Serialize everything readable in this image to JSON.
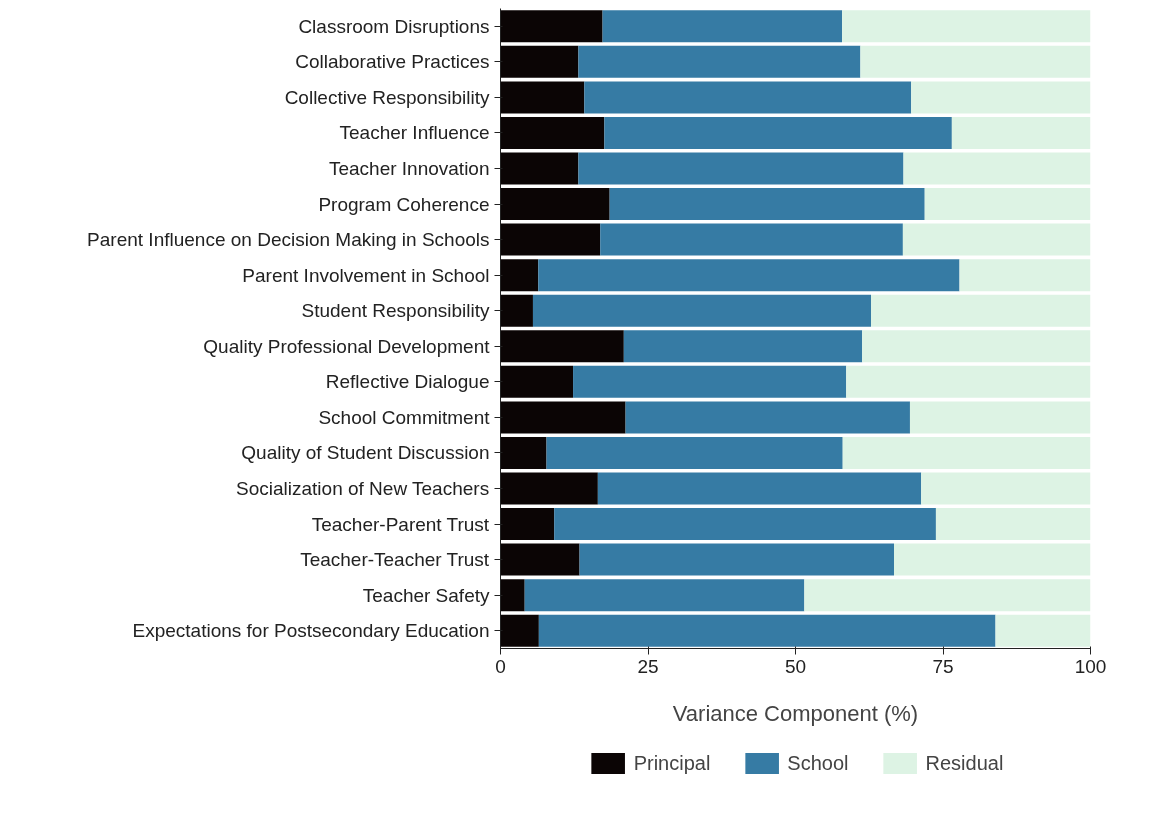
{
  "chart_data": {
    "type": "bar",
    "orientation": "horizontal",
    "stacked": true,
    "xlabel": "Variance Component (%)",
    "categories": [
      "Classroom Disruptions",
      "Collaborative Practices",
      "Collective Responsibility",
      "Teacher Influence",
      "Teacher Innovation",
      "Program Coherence",
      "Parent Influence on Decision Making in Schools",
      "Parent Involvement in School",
      "Student Responsibility",
      "Quality Professional Development",
      "Reflective Dialogue",
      "School Commitment",
      "Quality of Student Discussion",
      "Socialization of New Teachers",
      "Teacher-Parent Trust",
      "Teacher-Teacher Trust",
      "Teacher Safety",
      "Expectations for Postsecondary Education"
    ],
    "series": [
      {
        "name": "Principal",
        "color": "#0b0505",
        "values": [
          17.3,
          13.2,
          14.2,
          17.6,
          13.2,
          18.5,
          16.9,
          6.4,
          5.5,
          20.9,
          12.3,
          21.2,
          7.8,
          16.5,
          9.1,
          13.4,
          4.1,
          6.5
        ]
      },
      {
        "name": "School",
        "color": "#367ba4",
        "values": [
          40.6,
          47.8,
          55.4,
          58.9,
          55.1,
          53.4,
          51.3,
          71.4,
          57.3,
          40.4,
          46.3,
          48.2,
          50.2,
          54.8,
          64.7,
          53.3,
          47.4,
          77.4
        ]
      },
      {
        "name": "Residual",
        "color": "#ddf3e4",
        "values": [
          42.1,
          39.0,
          30.4,
          23.5,
          31.7,
          28.1,
          31.8,
          22.2,
          37.2,
          38.7,
          41.4,
          30.6,
          42.0,
          28.7,
          26.2,
          33.3,
          48.5,
          16.1
        ]
      }
    ],
    "xlim": [
      0,
      100
    ],
    "xticks": [
      0,
      25,
      50,
      75,
      100
    ],
    "grid": false,
    "legend": "bottom"
  }
}
